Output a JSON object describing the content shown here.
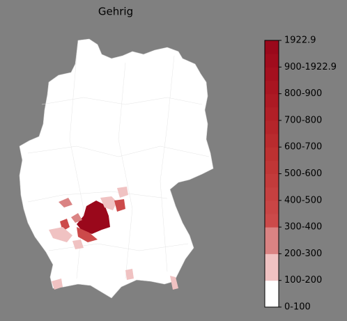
{
  "title": "Gehrig",
  "legend": {
    "ticks": [
      "0-100",
      "100-200",
      "200-300",
      "300-400",
      "400-500",
      "500-600",
      "600-700",
      "700-800",
      "800-900",
      "900-1922.9",
      "1922.9"
    ],
    "colors": [
      "#ffffff",
      "#f0c2c2",
      "#da8383",
      "#cc4a4a",
      "#c94545",
      "#c64040",
      "#c33b3b",
      "#c03636",
      "#bd3131",
      "#b92b2e",
      "#b5252a",
      "#b11f27",
      "#ad1a24",
      "#a91521",
      "#a5101f",
      "#a00c1d",
      "#9a081b"
    ]
  }
}
